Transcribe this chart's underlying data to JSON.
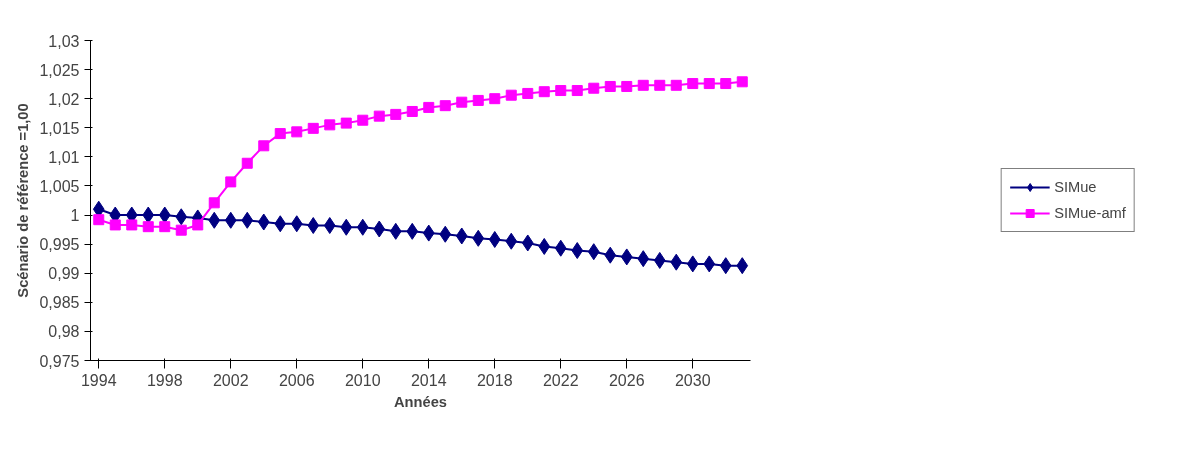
{
  "chart_data": {
    "type": "line",
    "xlabel": "Années",
    "ylabel": "Scénario de référence =1,00",
    "x": [
      1994,
      1995,
      1996,
      1997,
      1998,
      1999,
      2000,
      2001,
      2002,
      2003,
      2004,
      2005,
      2006,
      2007,
      2008,
      2009,
      2010,
      2011,
      2012,
      2013,
      2014,
      2015,
      2016,
      2017,
      2018,
      2019,
      2020,
      2021,
      2022,
      2023,
      2024,
      2025,
      2026,
      2027,
      2028,
      2029,
      2030,
      2031,
      2032,
      2033
    ],
    "xlim": [
      1993.5,
      2033.5
    ],
    "xticks": [
      1994,
      1998,
      2002,
      2006,
      2010,
      2014,
      2018,
      2022,
      2026,
      2030
    ],
    "ylim": [
      0.975,
      1.03
    ],
    "yticks": [
      {
        "value": 0.975,
        "label": "0,975"
      },
      {
        "value": 0.98,
        "label": "0,98"
      },
      {
        "value": 0.985,
        "label": "0,985"
      },
      {
        "value": 0.99,
        "label": "0,99"
      },
      {
        "value": 0.995,
        "label": "0,995"
      },
      {
        "value": 1,
        "label": "1"
      },
      {
        "value": 1.005,
        "label": "1,005"
      },
      {
        "value": 1.01,
        "label": "1,01"
      },
      {
        "value": 1.015,
        "label": "1,015"
      },
      {
        "value": 1.02,
        "label": "1,02"
      },
      {
        "value": 1.025,
        "label": "1,025"
      },
      {
        "value": 1.03,
        "label": "1,03"
      }
    ],
    "grid": false,
    "legend": "right",
    "series": [
      {
        "name": "SIMue",
        "color": "#000080",
        "marker": "diamond",
        "values": [
          1.001,
          1.0,
          1.0,
          1.0,
          1.0,
          0.9997,
          0.9995,
          0.9991,
          0.9991,
          0.9991,
          0.9988,
          0.9985,
          0.9985,
          0.9982,
          0.9982,
          0.9979,
          0.9979,
          0.9976,
          0.9972,
          0.9972,
          0.9969,
          0.9967,
          0.9964,
          0.996,
          0.9958,
          0.9955,
          0.9952,
          0.9946,
          0.9943,
          0.9939,
          0.9937,
          0.9931,
          0.9928,
          0.9925,
          0.9922,
          0.9919,
          0.9916,
          0.9916,
          0.9913,
          0.9913
        ]
      },
      {
        "name": "SIMue-amf",
        "color": "#ff00ff",
        "marker": "square",
        "values": [
          0.9992,
          0.9983,
          0.9983,
          0.998,
          0.998,
          0.9974,
          0.9983,
          1.0021,
          1.0057,
          1.0089,
          1.0119,
          1.014,
          1.0143,
          1.0149,
          1.0155,
          1.0158,
          1.0163,
          1.017,
          1.0173,
          1.0178,
          1.0185,
          1.0188,
          1.0194,
          1.0197,
          1.02,
          1.0206,
          1.0209,
          1.0212,
          1.0214,
          1.0214,
          1.0218,
          1.0221,
          1.0221,
          1.0223,
          1.0223,
          1.0223,
          1.0226,
          1.0226,
          1.0226,
          1.0229
        ]
      }
    ]
  }
}
